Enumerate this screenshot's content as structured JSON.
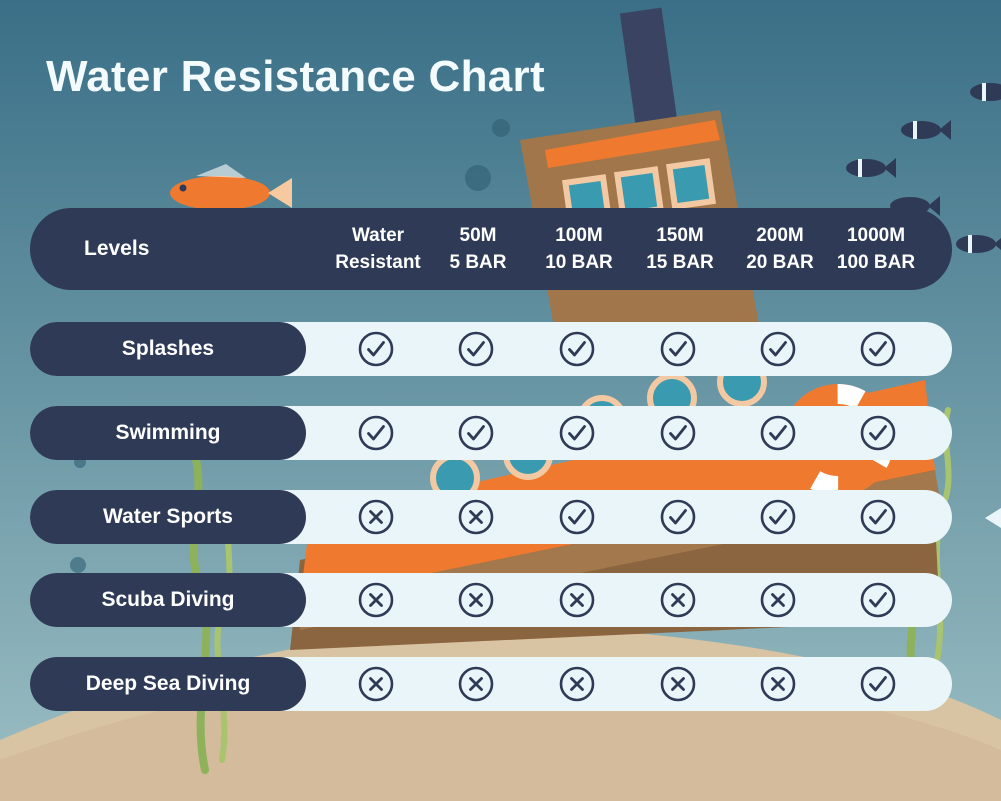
{
  "title": "Water Resistance Chart",
  "colors": {
    "header_bg": "#2f3a56",
    "row_bg": "#e9f5f8",
    "icon": "#2f3a56",
    "water_top": "#3a6f87",
    "water_bottom": "#8fb6bf",
    "sand": "#d9c4a4"
  },
  "chart_data": {
    "type": "table",
    "row_header": "Levels",
    "columns": [
      {
        "line1": "Water",
        "line2": "Resistant"
      },
      {
        "line1": "50M",
        "line2": "5 BAR"
      },
      {
        "line1": "100M",
        "line2": "10 BAR"
      },
      {
        "line1": "150M",
        "line2": "15 BAR"
      },
      {
        "line1": "200M",
        "line2": "20 BAR"
      },
      {
        "line1": "1000M",
        "line2": "100 BAR"
      }
    ],
    "rows": [
      {
        "label": "Splashes",
        "values": [
          true,
          true,
          true,
          true,
          true,
          true
        ]
      },
      {
        "label": "Swimming",
        "values": [
          true,
          true,
          true,
          true,
          true,
          true
        ]
      },
      {
        "label": "Water Sports",
        "values": [
          false,
          false,
          true,
          true,
          true,
          true
        ]
      },
      {
        "label": "Scuba Diving",
        "values": [
          false,
          false,
          false,
          false,
          false,
          true
        ]
      },
      {
        "label": "Deep Sea Diving",
        "values": [
          false,
          false,
          false,
          false,
          false,
          true
        ]
      }
    ],
    "legend": {
      "true": "check-icon",
      "false": "cross-icon"
    }
  }
}
